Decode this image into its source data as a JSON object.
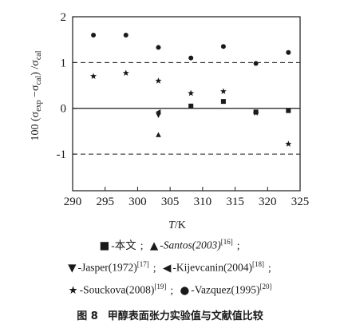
{
  "chart_data": {
    "type": "scatter",
    "xlabel": "T/K",
    "ylabel": "100 (σexp −σcal) /σcal",
    "xlim": [
      290,
      325
    ],
    "ylim": [
      -1.8,
      2
    ],
    "x_ticks": [
      "290",
      "295",
      "300",
      "305",
      "310",
      "315",
      "320",
      "325"
    ],
    "y_ticks": [
      "2",
      "1",
      "0",
      "-1"
    ],
    "reference_lines": [
      {
        "y": 1,
        "style": "dashed"
      },
      {
        "y": 0,
        "style": "solid"
      },
      {
        "y": -1,
        "style": "dashed"
      }
    ],
    "series": [
      {
        "name": "本文",
        "ref": "",
        "marker": "square",
        "symbol": "■",
        "points": [
          [
            308.2,
            0.05
          ],
          [
            313.2,
            0.15
          ],
          [
            318.2,
            -0.08
          ],
          [
            323.2,
            -0.05
          ]
        ]
      },
      {
        "name": "Santos(2003)",
        "ref": "[16]",
        "marker": "triangle-up",
        "symbol": "▲",
        "points": [
          [
            303.2,
            -0.58
          ]
        ]
      },
      {
        "name": "Jasper(1972)",
        "ref": "[17]",
        "marker": "triangle-down",
        "symbol": "▼",
        "points": [
          [
            303.2,
            -0.15
          ]
        ]
      },
      {
        "name": "Kijevcanin(2004)",
        "ref": "[18]",
        "marker": "triangle-left",
        "symbol": "◀",
        "points": [
          [
            303.2,
            -0.08
          ]
        ]
      },
      {
        "name": "Souckova(2008)",
        "ref": "[19]",
        "marker": "star",
        "symbol": "★",
        "points": [
          [
            293.2,
            0.7
          ],
          [
            298.2,
            0.77
          ],
          [
            303.2,
            0.6
          ],
          [
            308.2,
            0.33
          ],
          [
            313.2,
            0.37
          ],
          [
            318.2,
            -0.1
          ],
          [
            323.2,
            -0.78
          ]
        ]
      },
      {
        "name": "Vazquez(1995)",
        "ref": "[20]",
        "marker": "circle",
        "symbol": "●",
        "points": [
          [
            293.2,
            1.6
          ],
          [
            298.2,
            1.6
          ],
          [
            303.2,
            1.33
          ],
          [
            308.2,
            1.1
          ],
          [
            313.2,
            1.35
          ],
          [
            318.2,
            0.98
          ],
          [
            323.2,
            1.22
          ]
        ]
      }
    ]
  },
  "caption": {
    "number": "图 8",
    "text": "甲醇表面张力实验值与文献值比较"
  }
}
